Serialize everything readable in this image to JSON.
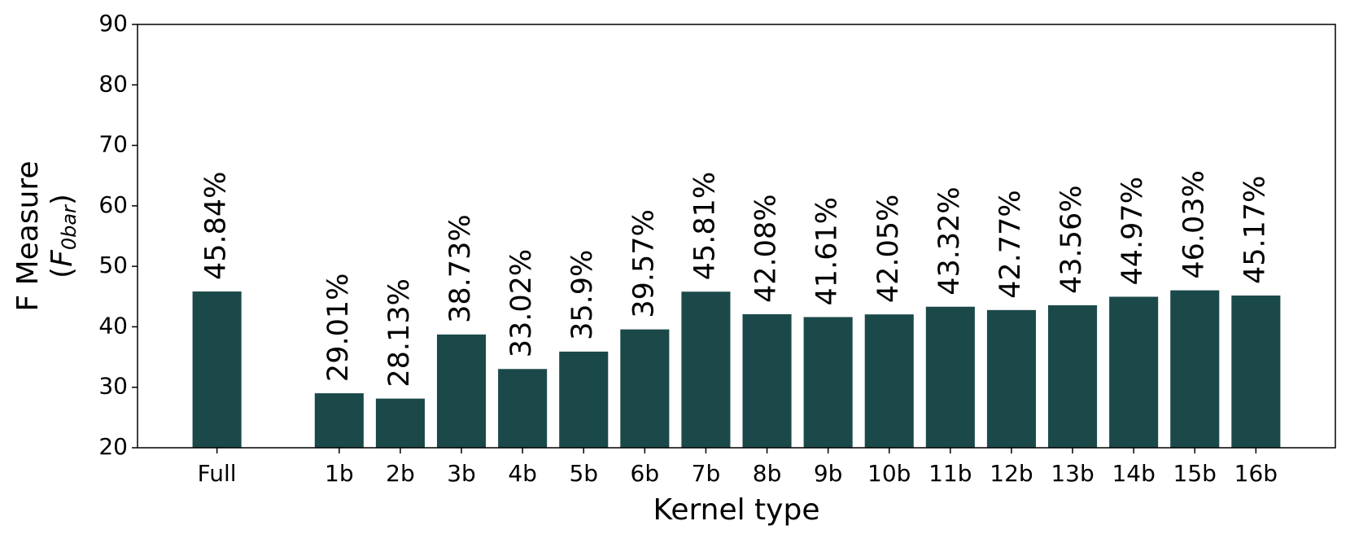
{
  "chart_data": {
    "type": "bar",
    "xlabel": "Kernel type",
    "ylabel": [
      "F Measure",
      "(",
      "F",
      "0bar",
      ")"
    ],
    "categories": [
      "Full",
      null,
      "1b",
      "2b",
      "3b",
      "4b",
      "5b",
      "6b",
      "7b",
      "8b",
      "9b",
      "10b",
      "11b",
      "12b",
      "13b",
      "14b",
      "15b",
      "16b"
    ],
    "values": [
      45.84,
      null,
      29.01,
      28.13,
      38.73,
      33.02,
      35.9,
      39.57,
      45.81,
      42.08,
      41.61,
      42.05,
      43.32,
      42.77,
      43.56,
      44.97,
      46.03,
      45.17
    ],
    "value_labels": [
      "45.84%",
      null,
      "29.01%",
      "28.13%",
      "38.73%",
      "33.02%",
      "35.9%",
      "39.57%",
      "45.81%",
      "42.08%",
      "41.61%",
      "42.05%",
      "43.32%",
      "42.77%",
      "43.56%",
      "44.97%",
      "46.03%",
      "45.17%"
    ],
    "color": "#1b4949",
    "ylim": [
      20,
      90
    ],
    "yticks": [
      20,
      30,
      40,
      50,
      60,
      70,
      80,
      90
    ],
    "grid": false
  }
}
